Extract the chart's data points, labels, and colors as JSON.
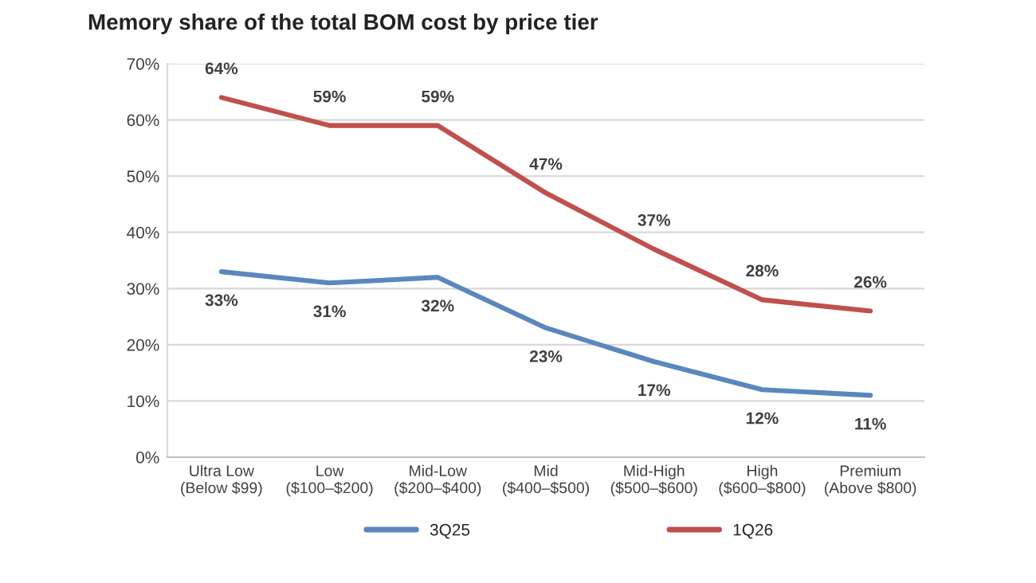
{
  "chart_data": {
    "type": "line",
    "title": "Memory share of the total BOM cost by price tier",
    "categories": [
      "Ultra Low\n(Below $99)",
      "Low\n($100–$200)",
      "Mid-Low\n($200–$400)",
      "Mid\n($400–$500)",
      "Mid-High\n($500–$600)",
      "High\n($600–$800)",
      "Premium\n(Above $800)"
    ],
    "series": [
      {
        "name": "3Q25",
        "color": "#5b87bd",
        "values": [
          33,
          31,
          32,
          23,
          17,
          12,
          11
        ],
        "value_labels": [
          "33%",
          "31%",
          "32%",
          "23%",
          "17%",
          "12%",
          "11%"
        ]
      },
      {
        "name": "1Q26",
        "color": "#c0504d",
        "values": [
          64,
          59,
          59,
          47,
          37,
          28,
          26
        ],
        "value_labels": [
          "64%",
          "59%",
          "59%",
          "47%",
          "37%",
          "28%",
          "26%"
        ]
      }
    ],
    "ylim": [
      0,
      70
    ],
    "yticks": [
      {
        "value": 0,
        "label": "0%"
      },
      {
        "value": 10,
        "label": "10%"
      },
      {
        "value": 20,
        "label": "20%"
      },
      {
        "value": 30,
        "label": "30%"
      },
      {
        "value": 40,
        "label": "40%"
      },
      {
        "value": 50,
        "label": "50%"
      },
      {
        "value": 60,
        "label": "60%"
      },
      {
        "value": 70,
        "label": "70%"
      }
    ],
    "grid": "y",
    "legend": "bottom",
    "marker": "none",
    "line_style": "solid"
  }
}
